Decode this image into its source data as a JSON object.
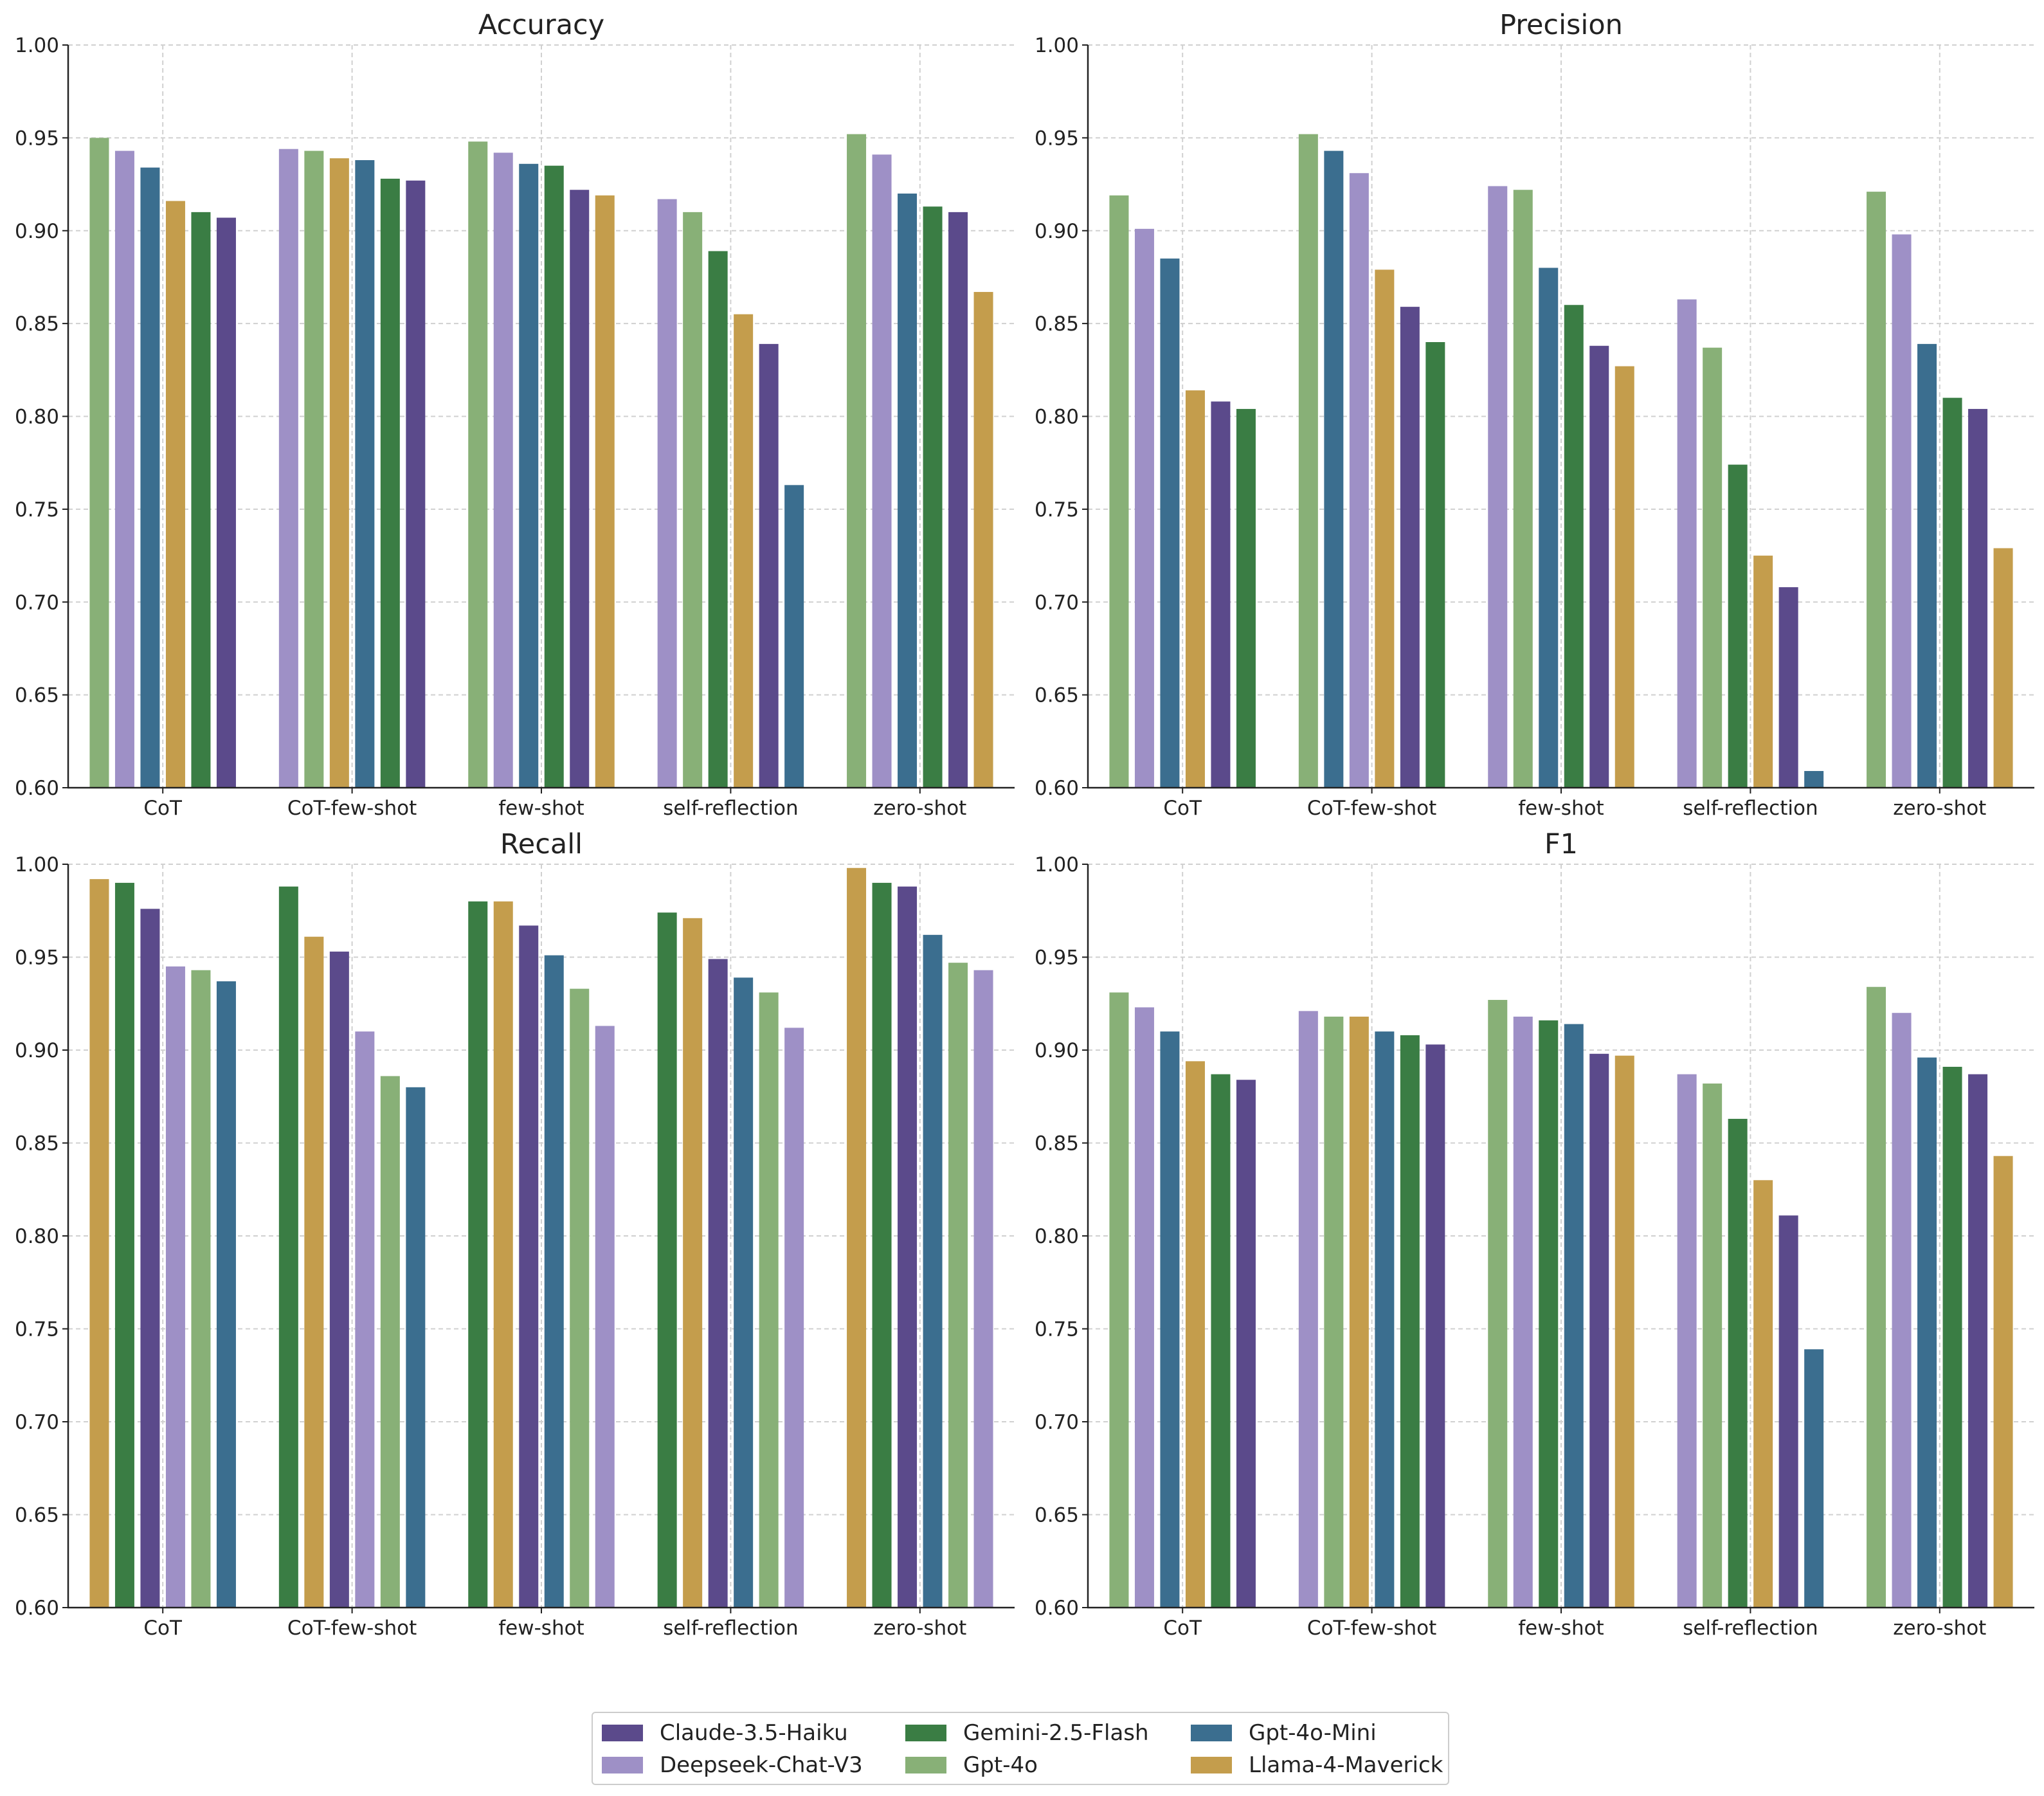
{
  "chart_data": [
    {
      "type": "bar",
      "title": "Accuracy",
      "categories": [
        "CoT",
        "CoT-few-shot",
        "few-shot",
        "self-reflection",
        "zero-shot"
      ],
      "ylim": [
        0.6,
        1.0
      ],
      "yticks": [
        "0.60",
        "0.65",
        "0.70",
        "0.75",
        "0.80",
        "0.85",
        "0.90",
        "0.95",
        "1.00"
      ],
      "grid": true,
      "groups": [
        [
          [
            "Gpt-4o",
            0.95
          ],
          [
            "Deepseek-Chat-V3",
            0.943
          ],
          [
            "Gpt-4o-Mini",
            0.934
          ],
          [
            "Llama-4-Maverick",
            0.916
          ],
          [
            "Gemini-2.5-Flash",
            0.91
          ],
          [
            "Claude-3.5-Haiku",
            0.907
          ]
        ],
        [
          [
            "Deepseek-Chat-V3",
            0.944
          ],
          [
            "Gpt-4o",
            0.943
          ],
          [
            "Llama-4-Maverick",
            0.939
          ],
          [
            "Gpt-4o-Mini",
            0.938
          ],
          [
            "Gemini-2.5-Flash",
            0.928
          ],
          [
            "Claude-3.5-Haiku",
            0.927
          ]
        ],
        [
          [
            "Gpt-4o",
            0.948
          ],
          [
            "Deepseek-Chat-V3",
            0.942
          ],
          [
            "Gpt-4o-Mini",
            0.936
          ],
          [
            "Gemini-2.5-Flash",
            0.935
          ],
          [
            "Claude-3.5-Haiku",
            0.922
          ],
          [
            "Llama-4-Maverick",
            0.919
          ]
        ],
        [
          [
            "Deepseek-Chat-V3",
            0.917
          ],
          [
            "Gpt-4o",
            0.91
          ],
          [
            "Gemini-2.5-Flash",
            0.889
          ],
          [
            "Llama-4-Maverick",
            0.855
          ],
          [
            "Claude-3.5-Haiku",
            0.839
          ],
          [
            "Gpt-4o-Mini",
            0.763
          ]
        ],
        [
          [
            "Gpt-4o",
            0.952
          ],
          [
            "Deepseek-Chat-V3",
            0.941
          ],
          [
            "Gpt-4o-Mini",
            0.92
          ],
          [
            "Gemini-2.5-Flash",
            0.913
          ],
          [
            "Claude-3.5-Haiku",
            0.91
          ],
          [
            "Llama-4-Maverick",
            0.867
          ]
        ]
      ]
    },
    {
      "type": "bar",
      "title": "Precision",
      "categories": [
        "CoT",
        "CoT-few-shot",
        "few-shot",
        "self-reflection",
        "zero-shot"
      ],
      "ylim": [
        0.6,
        1.0
      ],
      "yticks": [
        "0.60",
        "0.65",
        "0.70",
        "0.75",
        "0.80",
        "0.85",
        "0.90",
        "0.95",
        "1.00"
      ],
      "grid": true,
      "groups": [
        [
          [
            "Gpt-4o",
            0.919
          ],
          [
            "Deepseek-Chat-V3",
            0.901
          ],
          [
            "Gpt-4o-Mini",
            0.885
          ],
          [
            "Llama-4-Maverick",
            0.814
          ],
          [
            "Claude-3.5-Haiku",
            0.808
          ],
          [
            "Gemini-2.5-Flash",
            0.804
          ]
        ],
        [
          [
            "Gpt-4o",
            0.952
          ],
          [
            "Gpt-4o-Mini",
            0.943
          ],
          [
            "Deepseek-Chat-V3",
            0.931
          ],
          [
            "Llama-4-Maverick",
            0.879
          ],
          [
            "Claude-3.5-Haiku",
            0.859
          ],
          [
            "Gemini-2.5-Flash",
            0.84
          ]
        ],
        [
          [
            "Deepseek-Chat-V3",
            0.924
          ],
          [
            "Gpt-4o",
            0.922
          ],
          [
            "Gpt-4o-Mini",
            0.88
          ],
          [
            "Gemini-2.5-Flash",
            0.86
          ],
          [
            "Claude-3.5-Haiku",
            0.838
          ],
          [
            "Llama-4-Maverick",
            0.827
          ]
        ],
        [
          [
            "Deepseek-Chat-V3",
            0.863
          ],
          [
            "Gpt-4o",
            0.837
          ],
          [
            "Gemini-2.5-Flash",
            0.774
          ],
          [
            "Llama-4-Maverick",
            0.725
          ],
          [
            "Claude-3.5-Haiku",
            0.708
          ],
          [
            "Gpt-4o-Mini",
            0.609
          ]
        ],
        [
          [
            "Gpt-4o",
            0.921
          ],
          [
            "Deepseek-Chat-V3",
            0.898
          ],
          [
            "Gpt-4o-Mini",
            0.839
          ],
          [
            "Gemini-2.5-Flash",
            0.81
          ],
          [
            "Claude-3.5-Haiku",
            0.804
          ],
          [
            "Llama-4-Maverick",
            0.729
          ]
        ]
      ]
    },
    {
      "type": "bar",
      "title": "Recall",
      "categories": [
        "CoT",
        "CoT-few-shot",
        "few-shot",
        "self-reflection",
        "zero-shot"
      ],
      "ylim": [
        0.6,
        1.0
      ],
      "yticks": [
        "0.60",
        "0.65",
        "0.70",
        "0.75",
        "0.80",
        "0.85",
        "0.90",
        "0.95",
        "1.00"
      ],
      "grid": true,
      "groups": [
        [
          [
            "Llama-4-Maverick",
            0.992
          ],
          [
            "Gemini-2.5-Flash",
            0.99
          ],
          [
            "Claude-3.5-Haiku",
            0.976
          ],
          [
            "Deepseek-Chat-V3",
            0.945
          ],
          [
            "Gpt-4o",
            0.943
          ],
          [
            "Gpt-4o-Mini",
            0.937
          ]
        ],
        [
          [
            "Gemini-2.5-Flash",
            0.988
          ],
          [
            "Llama-4-Maverick",
            0.961
          ],
          [
            "Claude-3.5-Haiku",
            0.953
          ],
          [
            "Deepseek-Chat-V3",
            0.91
          ],
          [
            "Gpt-4o",
            0.886
          ],
          [
            "Gpt-4o-Mini",
            0.88
          ]
        ],
        [
          [
            "Gemini-2.5-Flash",
            0.98
          ],
          [
            "Llama-4-Maverick",
            0.98
          ],
          [
            "Claude-3.5-Haiku",
            0.967
          ],
          [
            "Gpt-4o-Mini",
            0.951
          ],
          [
            "Gpt-4o",
            0.933
          ],
          [
            "Deepseek-Chat-V3",
            0.913
          ]
        ],
        [
          [
            "Gemini-2.5-Flash",
            0.974
          ],
          [
            "Llama-4-Maverick",
            0.971
          ],
          [
            "Claude-3.5-Haiku",
            0.949
          ],
          [
            "Gpt-4o-Mini",
            0.939
          ],
          [
            "Gpt-4o",
            0.931
          ],
          [
            "Deepseek-Chat-V3",
            0.912
          ]
        ],
        [
          [
            "Llama-4-Maverick",
            0.998
          ],
          [
            "Gemini-2.5-Flash",
            0.99
          ],
          [
            "Claude-3.5-Haiku",
            0.988
          ],
          [
            "Gpt-4o-Mini",
            0.962
          ],
          [
            "Gpt-4o",
            0.947
          ],
          [
            "Deepseek-Chat-V3",
            0.943
          ]
        ]
      ]
    },
    {
      "type": "bar",
      "title": "F1",
      "categories": [
        "CoT",
        "CoT-few-shot",
        "few-shot",
        "self-reflection",
        "zero-shot"
      ],
      "ylim": [
        0.6,
        1.0
      ],
      "yticks": [
        "0.60",
        "0.65",
        "0.70",
        "0.75",
        "0.80",
        "0.85",
        "0.90",
        "0.95",
        "1.00"
      ],
      "grid": true,
      "groups": [
        [
          [
            "Gpt-4o",
            0.931
          ],
          [
            "Deepseek-Chat-V3",
            0.923
          ],
          [
            "Gpt-4o-Mini",
            0.91
          ],
          [
            "Llama-4-Maverick",
            0.894
          ],
          [
            "Gemini-2.5-Flash",
            0.887
          ],
          [
            "Claude-3.5-Haiku",
            0.884
          ]
        ],
        [
          [
            "Deepseek-Chat-V3",
            0.921
          ],
          [
            "Gpt-4o",
            0.918
          ],
          [
            "Llama-4-Maverick",
            0.918
          ],
          [
            "Gpt-4o-Mini",
            0.91
          ],
          [
            "Gemini-2.5-Flash",
            0.908
          ],
          [
            "Claude-3.5-Haiku",
            0.903
          ]
        ],
        [
          [
            "Gpt-4o",
            0.927
          ],
          [
            "Deepseek-Chat-V3",
            0.918
          ],
          [
            "Gemini-2.5-Flash",
            0.916
          ],
          [
            "Gpt-4o-Mini",
            0.914
          ],
          [
            "Claude-3.5-Haiku",
            0.898
          ],
          [
            "Llama-4-Maverick",
            0.897
          ]
        ],
        [
          [
            "Deepseek-Chat-V3",
            0.887
          ],
          [
            "Gpt-4o",
            0.882
          ],
          [
            "Gemini-2.5-Flash",
            0.863
          ],
          [
            "Llama-4-Maverick",
            0.83
          ],
          [
            "Claude-3.5-Haiku",
            0.811
          ],
          [
            "Gpt-4o-Mini",
            0.739
          ]
        ],
        [
          [
            "Gpt-4o",
            0.934
          ],
          [
            "Deepseek-Chat-V3",
            0.92
          ],
          [
            "Gpt-4o-Mini",
            0.896
          ],
          [
            "Gemini-2.5-Flash",
            0.891
          ],
          [
            "Claude-3.5-Haiku",
            0.887
          ],
          [
            "Llama-4-Maverick",
            0.843
          ]
        ]
      ]
    }
  ],
  "legend": {
    "placement": "bottom-center",
    "entries": [
      {
        "label": "Claude-3.5-Haiku",
        "color": "#5b4a8b"
      },
      {
        "label": "Gemini-2.5-Flash",
        "color": "#3a7d44"
      },
      {
        "label": "Gpt-4o-Mini",
        "color": "#3b6e8f"
      },
      {
        "label": "Deepseek-Chat-V3",
        "color": "#9e90c6"
      },
      {
        "label": "Gpt-4o",
        "color": "#88b077"
      },
      {
        "label": "Llama-4-Maverick",
        "color": "#c49d4c"
      }
    ]
  }
}
